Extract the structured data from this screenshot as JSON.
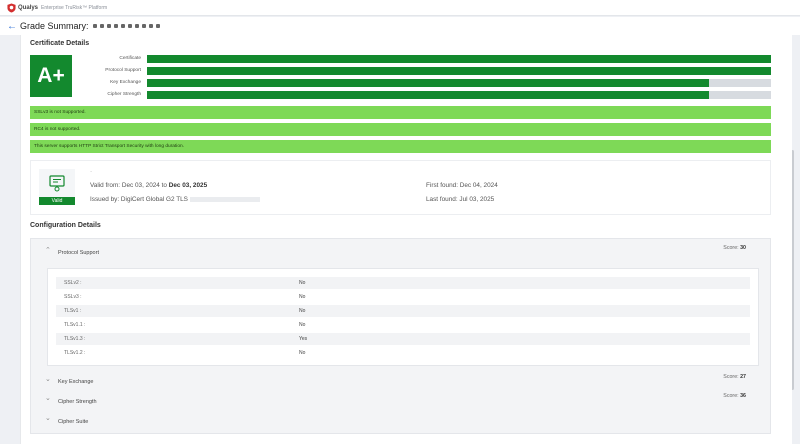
{
  "app": {
    "brand": "Qualys",
    "brand_sub": "Enterprise TruRisk™ Platform"
  },
  "header": {
    "title": "Grade Summary:"
  },
  "certificate_details": {
    "heading": "Certificate Details",
    "grade": "A+",
    "bars": [
      {
        "label": "Certificate",
        "fill": 1.0
      },
      {
        "label": "Protocol Support",
        "fill": 1.0
      },
      {
        "label": "Key Exchange",
        "fill": 0.9
      },
      {
        "label": "Cipher Strength",
        "fill": 0.9
      }
    ],
    "notices": [
      "SSLv3 is not Supported.",
      "RC4 is not supported.",
      "This server supports HTTP Strict Transport Security with long duration."
    ],
    "cert": {
      "badge": "Valid",
      "valid_from_prefix": "Valid from: Dec 03, 2024 to",
      "valid_to": "Dec 03, 2025",
      "issued_by": "Issued by: DigiCert Global G2 TLS",
      "first_found": "First found: Dec 04, 2024",
      "last_found": "Last found: Jul 03, 2025"
    }
  },
  "configuration": {
    "heading": "Configuration Details",
    "groups": [
      {
        "label": "Protocol Support",
        "score_label": "Score:",
        "score": "30"
      },
      {
        "label": "Key Exchange",
        "score_label": "Score:",
        "score": "27"
      },
      {
        "label": "Cipher Strength",
        "score_label": "Score:",
        "score": "36"
      },
      {
        "label": "Cipher Suite"
      }
    ],
    "protocols": [
      {
        "name": "SSLv2 :",
        "value": "No"
      },
      {
        "name": "SSLv3 :",
        "value": "No"
      },
      {
        "name": "TLSv1 :",
        "value": "No"
      },
      {
        "name": "TLSv1.1 :",
        "value": "No"
      },
      {
        "name": "TLSv1.3 :",
        "value": "Yes"
      },
      {
        "name": "TLSv1.2 :",
        "value": "No"
      }
    ]
  },
  "colors": {
    "grade_green": "#13892e",
    "notice_green": "#7ed957",
    "accent_blue": "#2e6fd6"
  }
}
